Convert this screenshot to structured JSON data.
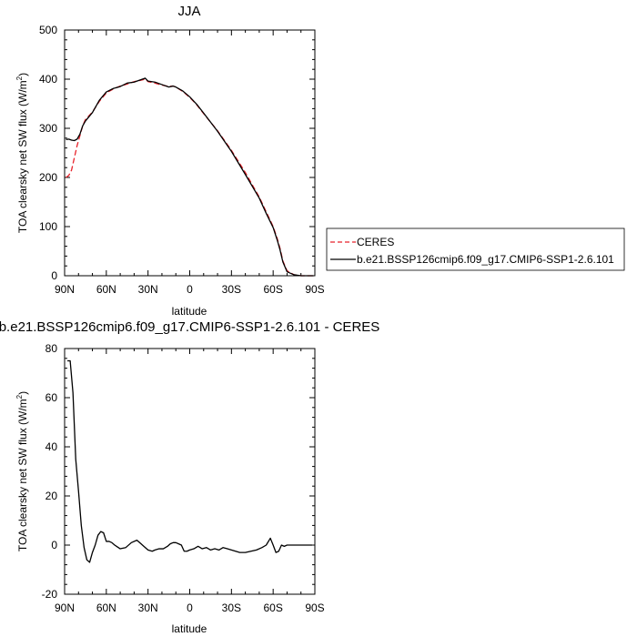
{
  "chart_data": [
    {
      "type": "line",
      "title": "JJA",
      "xlabel": "latitude",
      "ylabel": "TOA clearsky net SW flux (W/m",
      "ylabel_sup": "2",
      "ylabel_tail": ")",
      "xlim": [
        90,
        -90
      ],
      "ylim": [
        0,
        500
      ],
      "x_ticks": [
        90,
        60,
        30,
        0,
        -30,
        -60,
        -90
      ],
      "x_tick_labels": [
        "90N",
        "60N",
        "30N",
        "0",
        "30S",
        "60S",
        "90S"
      ],
      "y_ticks": [
        0,
        100,
        200,
        300,
        400,
        500
      ],
      "y_tick_labels": [
        "0",
        "100",
        "200",
        "300",
        "400",
        "500"
      ],
      "legend_position": "right",
      "series": [
        {
          "name": "CERES",
          "color": "#e8222a",
          "dash": true,
          "x": [
            89,
            87,
            85,
            83,
            81,
            79,
            77,
            75,
            70,
            65,
            60,
            55,
            50,
            45,
            40,
            35,
            32,
            30,
            25,
            20,
            15,
            12,
            10,
            5,
            0,
            -5,
            -10,
            -20,
            -30,
            -40,
            -50,
            -55,
            -60,
            -63,
            -65,
            -67,
            -70,
            -75,
            -80,
            -85,
            -89
          ],
          "y": [
            200,
            204,
            215,
            240,
            265,
            285,
            305,
            318,
            333,
            355,
            372,
            380,
            386,
            390,
            395,
            398,
            400,
            395,
            392,
            388,
            385,
            386,
            384,
            375,
            363,
            348,
            330,
            295,
            255,
            210,
            160,
            130,
            100,
            75,
            55,
            30,
            10,
            2,
            0,
            0,
            0
          ]
        },
        {
          "name": "b.e21.BSSP126cmip6.f09_g17.CMIP6-SSP1-2.6.101",
          "color": "#000000",
          "dash": false,
          "x": [
            89,
            87,
            85,
            83,
            81,
            79,
            77,
            75,
            70,
            65,
            60,
            55,
            50,
            45,
            40,
            35,
            32,
            30,
            25,
            20,
            15,
            12,
            10,
            5,
            0,
            -5,
            -10,
            -20,
            -30,
            -40,
            -50,
            -55,
            -60,
            -63,
            -65,
            -67,
            -70,
            -75,
            -80,
            -85,
            -89
          ],
          "y": [
            277,
            278,
            276,
            275,
            278,
            288,
            305,
            315,
            332,
            357,
            374,
            381,
            385,
            392,
            394,
            399,
            402,
            396,
            394,
            389,
            384,
            386,
            384,
            376,
            364,
            349,
            331,
            294,
            253,
            206,
            158,
            127,
            98,
            72,
            52,
            28,
            8,
            2,
            0,
            0,
            0
          ]
        }
      ]
    },
    {
      "type": "line",
      "title": "b.e21.BSSP126cmip6.f09_g17.CMIP6-SSP1-2.6.101 - CERES",
      "xlabel": "latitude",
      "ylabel": "TOA clearsky net SW flux (W/m",
      "ylabel_sup": "2",
      "ylabel_tail": ")",
      "xlim": [
        90,
        -90
      ],
      "ylim": [
        -20,
        80
      ],
      "x_ticks": [
        90,
        60,
        30,
        0,
        -30,
        -60,
        -90
      ],
      "x_tick_labels": [
        "90N",
        "60N",
        "30N",
        "0",
        "30S",
        "60S",
        "90S"
      ],
      "y_ticks": [
        -20,
        0,
        20,
        40,
        60,
        80
      ],
      "y_tick_labels": [
        "-20",
        "0",
        "20",
        "40",
        "60",
        "80"
      ],
      "series": [
        {
          "color": "#000000",
          "x": [
            88,
            86,
            84,
            82,
            80,
            78,
            76,
            74,
            72,
            70,
            68,
            66,
            64,
            62,
            60,
            58,
            56,
            54,
            50,
            46,
            42,
            38,
            35,
            33,
            30,
            27,
            25,
            22,
            19,
            16,
            14,
            12,
            10,
            8,
            6,
            4,
            2,
            0,
            -3,
            -6,
            -9,
            -12,
            -15,
            -18,
            -21,
            -24,
            -27,
            -30,
            -33,
            -36,
            -40,
            -44,
            -48,
            -52,
            -55,
            -58,
            -60,
            -62,
            -64,
            -66,
            -68,
            -70,
            -73,
            -76,
            -80,
            -84,
            -88
          ],
          "y": [
            75,
            75,
            62,
            35,
            22,
            8,
            -1,
            -6,
            -7,
            -3,
            0,
            4,
            5.5,
            5,
            1.5,
            1.5,
            1,
            0,
            -1.5,
            -1,
            1,
            2,
            0.5,
            -0.5,
            -2,
            -2.5,
            -2,
            -1.5,
            -1.5,
            -0.5,
            0.5,
            1,
            1,
            0.5,
            0,
            -2.5,
            -2.5,
            -2,
            -1.5,
            -0.5,
            -1.5,
            -1,
            -2,
            -1.5,
            -2,
            -1,
            -1.5,
            -2,
            -2.5,
            -3,
            -3,
            -2.5,
            -2,
            -1,
            0,
            2.8,
            0,
            -3,
            -2.5,
            0,
            -0.5,
            0,
            0,
            0,
            0,
            0,
            0
          ]
        }
      ]
    }
  ]
}
